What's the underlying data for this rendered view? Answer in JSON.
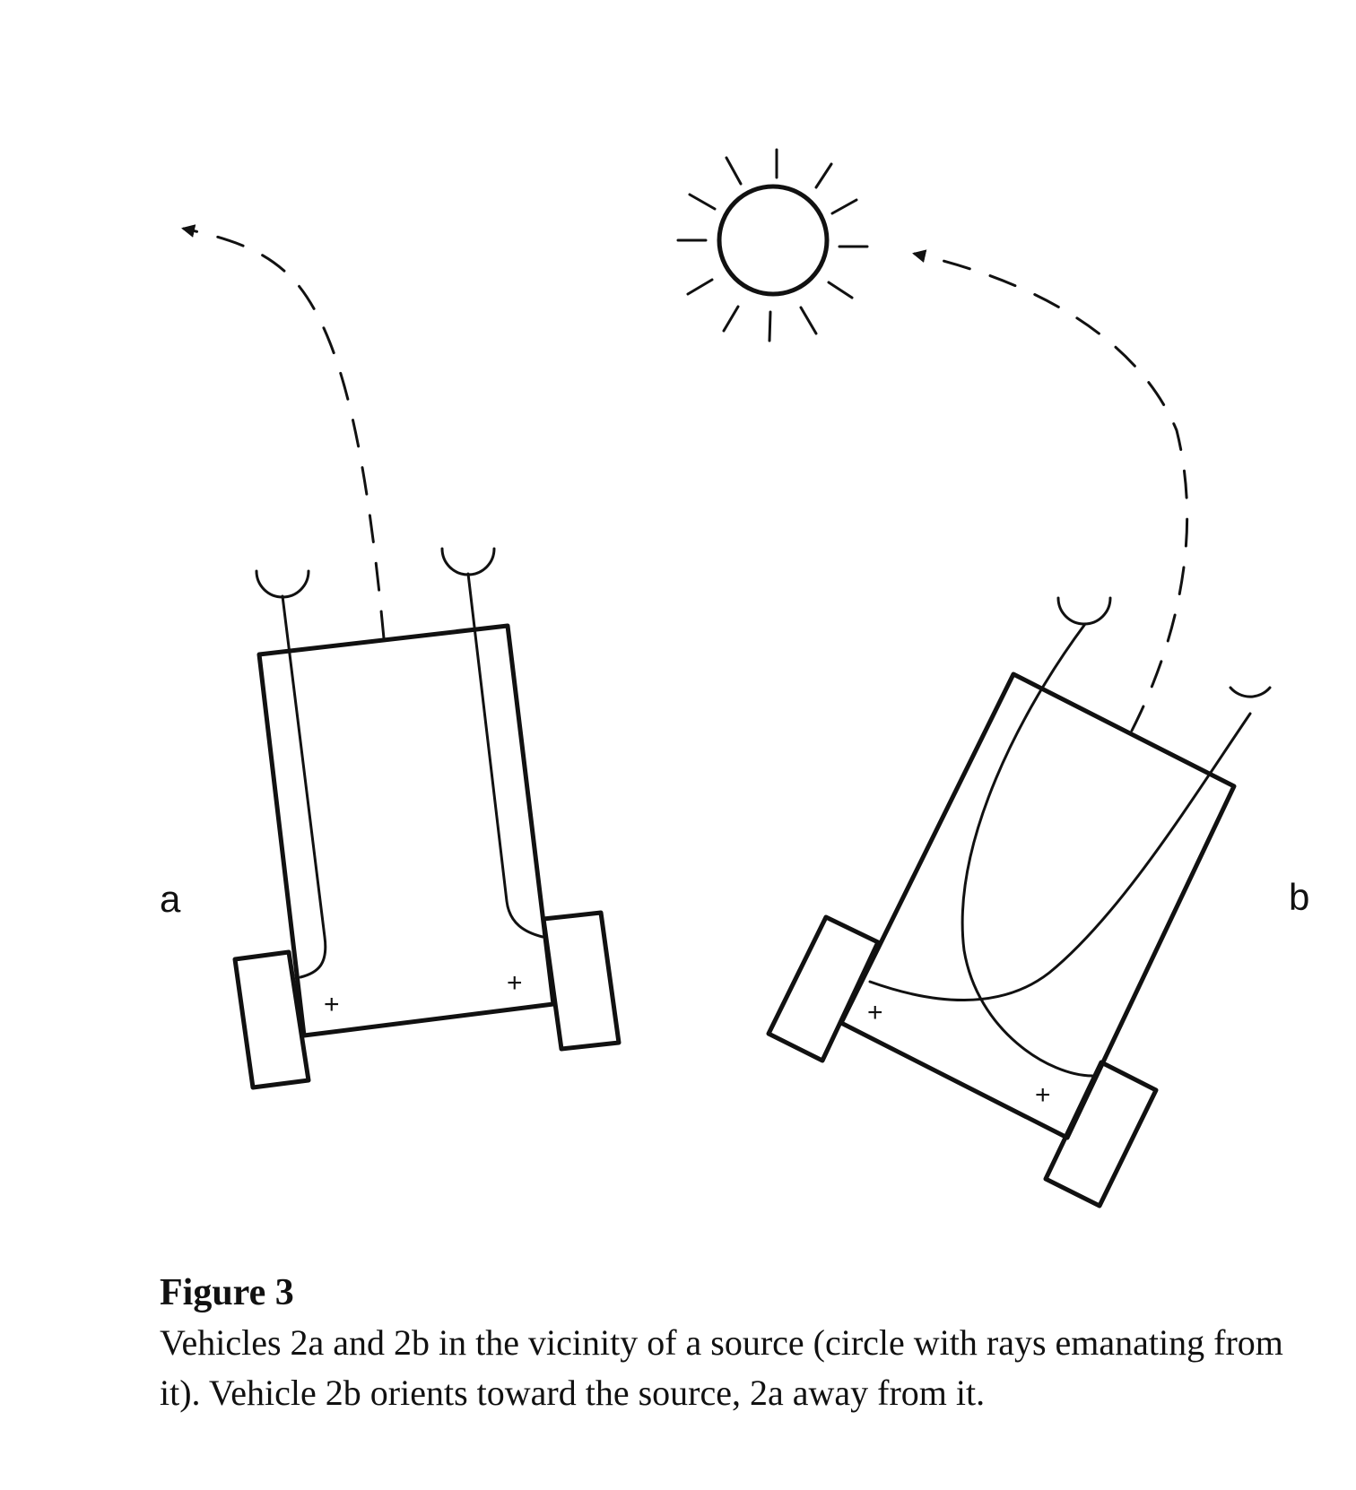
{
  "vehicle_a": {
    "label": "a",
    "signs": [
      "+",
      "+"
    ]
  },
  "vehicle_b": {
    "label": "b",
    "signs": [
      "+",
      "+"
    ]
  },
  "caption": {
    "title": "Figure 3",
    "text": "Vehicles 2a and 2b in the vicinity of a source (circle with rays emanating from it). Vehicle 2b orients toward the source, 2a away from it."
  }
}
